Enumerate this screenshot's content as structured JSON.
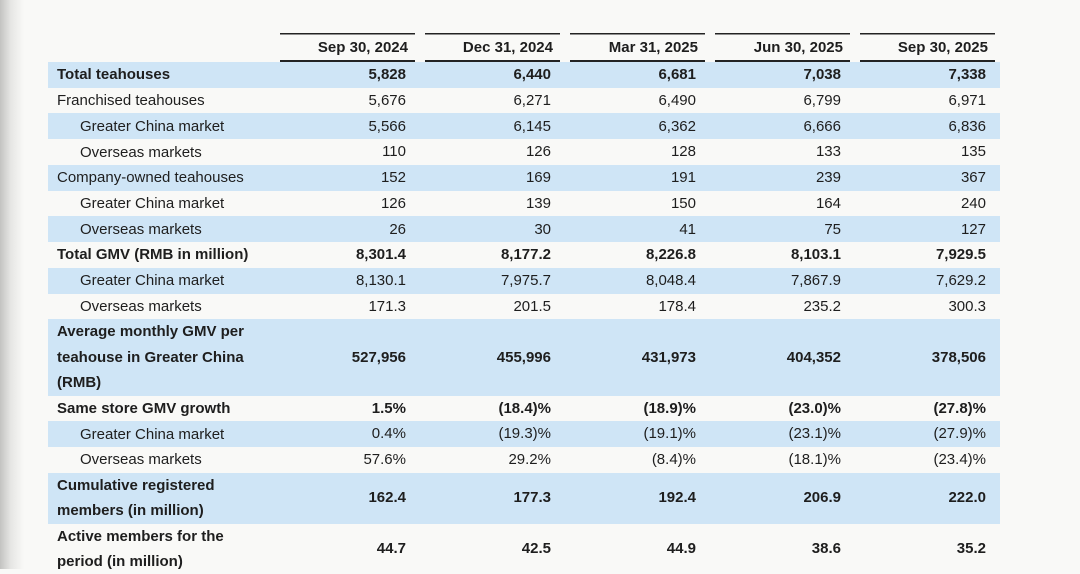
{
  "colors": {
    "row_shade": "#cfe5f6",
    "page_background": "#f9f9f7",
    "text": "#1e1e1e",
    "rule_line": "#232323",
    "left_edge_shadow": "#c3c3c1"
  },
  "chart_data": {
    "type": "table",
    "title": "",
    "columns": [
      "Sep 30, 2024",
      "Dec 31, 2024",
      "Mar 31, 2025",
      "Jun 30, 2025",
      "Sep 30, 2025"
    ],
    "rows": [
      {
        "label": "Total teahouses",
        "values": [
          "5,828",
          "6,440",
          "6,681",
          "7,038",
          "7,338"
        ],
        "bold": true,
        "indent": 0,
        "shaded": true
      },
      {
        "label": "Franchised teahouses",
        "values": [
          "5,676",
          "6,271",
          "6,490",
          "6,799",
          "6,971"
        ],
        "bold": false,
        "indent": 0,
        "shaded": false
      },
      {
        "label": "Greater China market",
        "values": [
          "5,566",
          "6,145",
          "6,362",
          "6,666",
          "6,836"
        ],
        "bold": false,
        "indent": 1,
        "shaded": true
      },
      {
        "label": "Overseas markets",
        "values": [
          "110",
          "126",
          "128",
          "133",
          "135"
        ],
        "bold": false,
        "indent": 1,
        "shaded": false
      },
      {
        "label": "Company-owned teahouses",
        "values": [
          "152",
          "169",
          "191",
          "239",
          "367"
        ],
        "bold": false,
        "indent": 0,
        "shaded": true
      },
      {
        "label": "Greater China market",
        "values": [
          "126",
          "139",
          "150",
          "164",
          "240"
        ],
        "bold": false,
        "indent": 1,
        "shaded": false
      },
      {
        "label": "Overseas markets",
        "values": [
          "26",
          "30",
          "41",
          "75",
          "127"
        ],
        "bold": false,
        "indent": 1,
        "shaded": true
      },
      {
        "label": "Total GMV (RMB in million)",
        "values": [
          "8,301.4",
          "8,177.2",
          "8,226.8",
          "8,103.1",
          "7,929.5"
        ],
        "bold": true,
        "indent": 0,
        "shaded": false
      },
      {
        "label": "Greater China market",
        "values": [
          "8,130.1",
          "7,975.7",
          "8,048.4",
          "7,867.9",
          "7,629.2"
        ],
        "bold": false,
        "indent": 1,
        "shaded": true
      },
      {
        "label": "Overseas markets",
        "values": [
          "171.3",
          "201.5",
          "178.4",
          "235.2",
          "300.3"
        ],
        "bold": false,
        "indent": 1,
        "shaded": false
      },
      {
        "label": "Average monthly GMV per teahouse in Greater China (RMB)",
        "values": [
          "527,956",
          "455,996",
          "431,973",
          "404,352",
          "378,506"
        ],
        "bold": true,
        "indent": 0,
        "shaded": true
      },
      {
        "label": "Same store GMV growth",
        "values": [
          "1.5%",
          "(18.4)%",
          "(18.9)%",
          "(23.0)%",
          "(27.8)%"
        ],
        "bold": true,
        "indent": 0,
        "shaded": false
      },
      {
        "label": "Greater China market",
        "values": [
          "0.4%",
          "(19.3)%",
          "(19.1)%",
          "(23.1)%",
          "(27.9)%"
        ],
        "bold": false,
        "indent": 1,
        "shaded": true
      },
      {
        "label": "Overseas markets",
        "values": [
          "57.6%",
          "29.2%",
          "(8.4)%",
          "(18.1)%",
          "(23.4)%"
        ],
        "bold": false,
        "indent": 1,
        "shaded": false
      },
      {
        "label": "Cumulative registered members (in million)",
        "values": [
          "162.4",
          "177.3",
          "192.4",
          "206.9",
          "222.0"
        ],
        "bold": true,
        "indent": 0,
        "shaded": true
      },
      {
        "label": "Active members for the period (in million)",
        "values": [
          "44.7",
          "42.5",
          "44.9",
          "38.6",
          "35.2"
        ],
        "bold": true,
        "indent": 0,
        "shaded": false
      }
    ]
  }
}
